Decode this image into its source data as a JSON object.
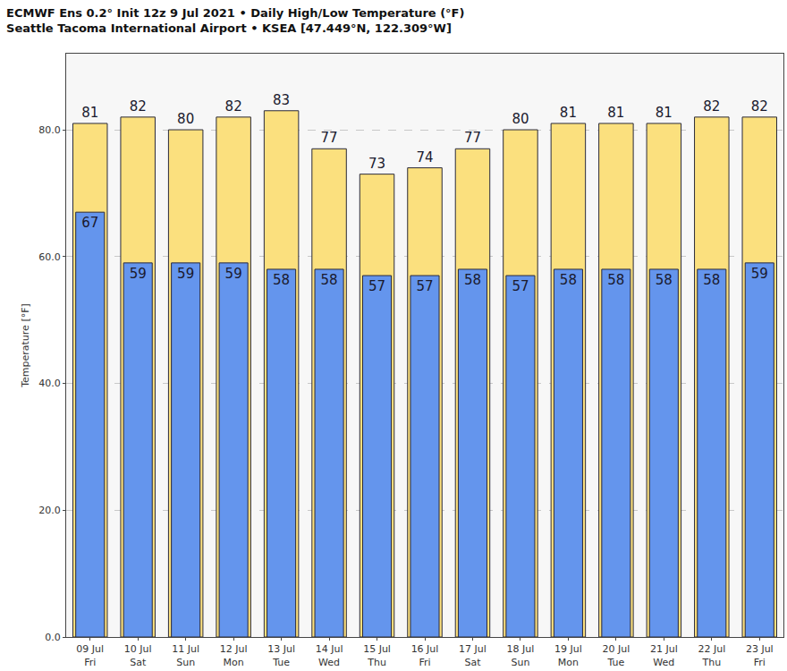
{
  "chart_data": {
    "type": "bar",
    "title": "ECMWF Ens 0.2° Init 12z 9 Jul 2021 • Daily High/Low Temperature (°F)",
    "subtitle": "Seattle Tacoma International Airport • KSEA [47.449°N, 122.309°W]",
    "y_label": "Temperature [°F]",
    "categories": [
      "09 Jul Fri",
      "10 Jul Sat",
      "11 Jul Sun",
      "12 Jul Mon",
      "13 Jul Tue",
      "14 Jul Wed",
      "15 Jul Thu",
      "16 Jul Fri",
      "17 Jul Sat",
      "18 Jul Sun",
      "19 Jul Mon",
      "20 Jul Tue",
      "21 Jul Wed",
      "22 Jul Thu",
      "23 Jul Fri"
    ],
    "series": [
      {
        "name": "High",
        "color": "#fbe07e",
        "values": [
          81,
          82,
          80,
          82,
          83,
          77,
          73,
          74,
          77,
          80,
          81,
          81,
          81,
          82,
          82
        ]
      },
      {
        "name": "Low",
        "color": "#6495ed",
        "values": [
          67,
          59,
          59,
          59,
          58,
          58,
          57,
          57,
          58,
          57,
          58,
          58,
          58,
          58,
          59
        ]
      }
    ],
    "ylim": [
      0,
      92
    ],
    "yticks": [
      {
        "value": 0,
        "label": "0.0"
      },
      {
        "value": 20,
        "label": "20.0"
      },
      {
        "value": 40,
        "label": "40.0"
      },
      {
        "value": 60,
        "label": "60.0"
      },
      {
        "value": 80,
        "label": "80.0"
      }
    ],
    "grid": true,
    "data_labels": true
  }
}
